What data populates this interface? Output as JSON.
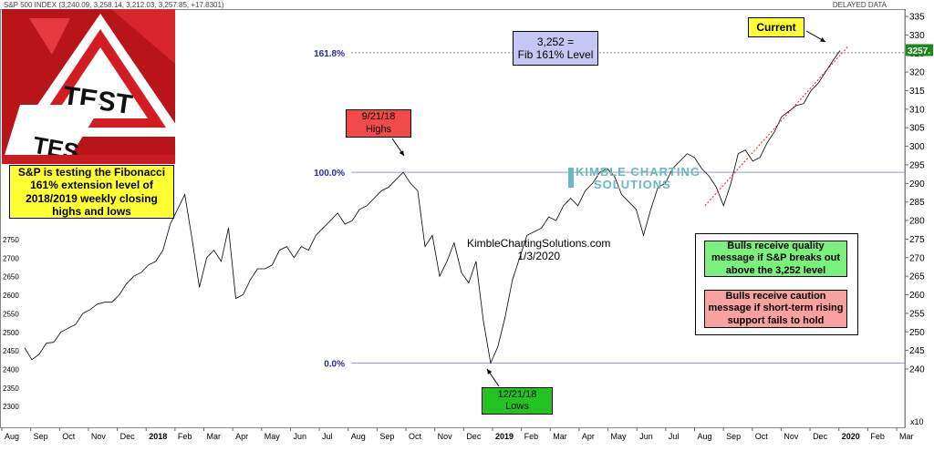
{
  "header": {
    "info": "S&P 500 INDEX (3,240.09, 3,258.14, 3,212.03, 3,257.85, +17.8301)",
    "delayed": "DELAYED DATA"
  },
  "annotations": {
    "test_sign_word": "TEST",
    "test_sign_word2": "TES",
    "caption": "S&P is testing the Fibonacci 161% extension level of 2018/2019 weekly closing highs and lows",
    "fib_box_line1": "3,252 =",
    "fib_box_line2": "Fib 161% Level",
    "highs_line1": "9/21/18",
    "highs_line2": "Highs",
    "lows_line1": "12/21/18",
    "lows_line2": "Lows",
    "current": "Current",
    "site": "KimbleChartingSolutions.com",
    "date": "1/3/2020",
    "watermark_line1": "KIMBLE CHARTING",
    "watermark_line2": "SOLUTIONS",
    "bulls_quality": "Bulls receive quality message if S&P breaks out above the 3,252 level",
    "bulls_caution": "Bulls receive caution message if short-term rising support fails to hold",
    "x10": "x10"
  },
  "colors": {
    "fib_box": "#c6c6f5",
    "highs_box": "#f04a4a",
    "lows_box": "#22c422",
    "current_box": "#ffff33",
    "caption_box": "#ffff33",
    "quality_box": "#7cf07c",
    "caution_box": "#f9a0a0",
    "fib_line": "#9999cc",
    "fib_label": "#2a2a9a",
    "price_line": "#000000",
    "support_line": "#e02020"
  },
  "chart_data": {
    "type": "line",
    "title": "S&P 500 INDEX",
    "last_value_label": "3257.",
    "y_right_ticks": [
      "335",
      "330",
      "325",
      "320",
      "315",
      "310",
      "305",
      "300",
      "295",
      "290",
      "285",
      "280",
      "275",
      "270",
      "265",
      "260",
      "255",
      "250",
      "245",
      "240"
    ],
    "y_left_ticks": [
      "2750",
      "2700",
      "2650",
      "2600",
      "2550",
      "2500",
      "2450",
      "2400",
      "2350",
      "2300"
    ],
    "x_ticks": [
      "Aug",
      "Sep",
      "Oct",
      "Nov",
      "Dec",
      "2018",
      "Feb",
      "Mar",
      "Apr",
      "May",
      "Jun",
      "Jul",
      "Aug",
      "Sep",
      "Oct",
      "Nov",
      "Dec",
      "2019",
      "Feb",
      "Mar",
      "Apr",
      "May",
      "Jun",
      "Jul",
      "Aug",
      "Sep",
      "Oct",
      "Nov",
      "Dec",
      "2020",
      "Feb",
      "Mar"
    ],
    "fib_levels": [
      {
        "label": "161.8%",
        "value": 3252
      },
      {
        "label": "100.0%",
        "value": 2930
      },
      {
        "label": "0.0%",
        "value": 2416
      }
    ],
    "series": [
      {
        "values": [
          2457,
          2425,
          2440,
          2470,
          2472,
          2500,
          2510,
          2520,
          2550,
          2560,
          2575,
          2580,
          2580,
          2600,
          2630,
          2650,
          2660,
          2680,
          2690,
          2720,
          2790,
          2830,
          2870,
          2750,
          2620,
          2700,
          2720,
          2690,
          2780,
          2590,
          2600,
          2640,
          2670,
          2670,
          2680,
          2720,
          2730,
          2700,
          2730,
          2720,
          2760,
          2780,
          2800,
          2820,
          2790,
          2800,
          2830,
          2840,
          2860,
          2880,
          2890,
          2910,
          2930,
          2900,
          2880,
          2730,
          2760,
          2650,
          2690,
          2740,
          2660,
          2632,
          2690,
          2530,
          2416,
          2460,
          2540,
          2640,
          2700,
          2760,
          2770,
          2780,
          2810,
          2800,
          2840,
          2860,
          2840,
          2880,
          2900,
          2930,
          2940,
          2920,
          2870,
          2850,
          2830,
          2760,
          2830,
          2890,
          2900,
          2940,
          2960,
          2980,
          2970,
          2940,
          2920,
          2890,
          2840,
          2900,
          2980,
          2990,
          2960,
          2970,
          3010,
          3040,
          3080,
          3095,
          3110,
          3115,
          3150,
          3170,
          3200,
          3230,
          3258
        ]
      }
    ],
    "support_line": {
      "from": 2840,
      "to": 3270
    }
  }
}
